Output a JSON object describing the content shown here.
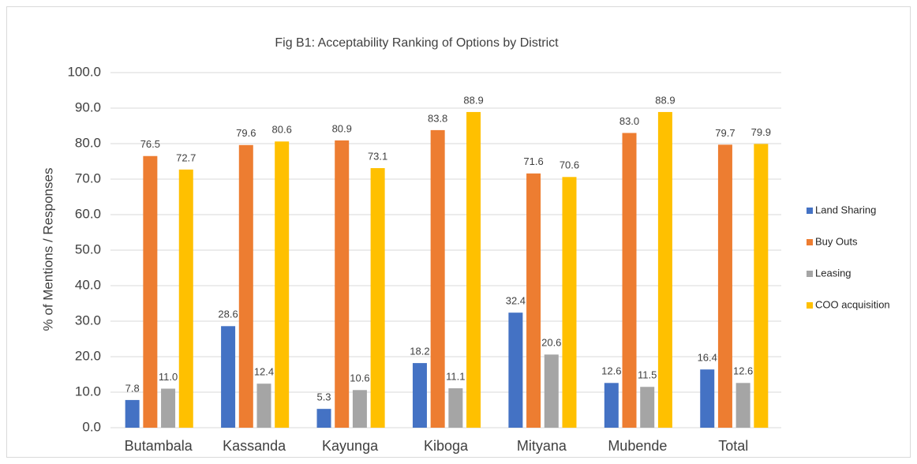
{
  "chart_data": {
    "type": "bar",
    "title": "Fig B1: Acceptability  Ranking of Options by District",
    "y_label": "% of Mentions / Responses",
    "categories": [
      "Butambala",
      "Kassanda",
      "Kayunga",
      "Kiboga",
      "Mityana",
      "Mubende",
      "Total"
    ],
    "series": [
      {
        "name": "Land Sharing",
        "color": "#4472c4",
        "values": [
          7.8,
          28.6,
          5.3,
          18.2,
          32.4,
          12.6,
          16.4
        ],
        "value_labels": [
          "7.8",
          "28.6",
          "5.3",
          "18.2",
          "32.4",
          "12.6",
          "16.4"
        ]
      },
      {
        "name": "Buy Outs",
        "color": "#ed7d31",
        "values": [
          76.5,
          79.6,
          80.9,
          83.8,
          71.6,
          83.0,
          79.7
        ],
        "value_labels": [
          "76.5",
          "79.6",
          "80.9",
          "83.8",
          "71.6",
          "83.0",
          "79.7"
        ]
      },
      {
        "name": "Leasing",
        "color": "#a5a5a5",
        "values": [
          11.0,
          12.4,
          10.6,
          11.1,
          20.6,
          11.5,
          12.6
        ],
        "value_labels": [
          "11.0",
          "12.4",
          "10.6",
          "11.1",
          "20.6",
          "11.5",
          "12.6"
        ]
      },
      {
        "name": "COO acquisition",
        "color": "#ffc000",
        "values": [
          72.7,
          80.6,
          73.1,
          88.9,
          70.6,
          88.9,
          79.9
        ],
        "value_labels": [
          "72.7",
          "80.6",
          "73.1",
          "88.9",
          "70.6",
          "88.9",
          "79.9"
        ]
      }
    ],
    "ylim": [
      0,
      100
    ],
    "yticks": [
      {
        "value": 0,
        "label": "0.0"
      },
      {
        "value": 10,
        "label": "10.0"
      },
      {
        "value": 20,
        "label": "20.0"
      },
      {
        "value": 30,
        "label": "30.0"
      },
      {
        "value": 40,
        "label": "40.0"
      },
      {
        "value": 50,
        "label": "50.0"
      },
      {
        "value": 60,
        "label": "60.0"
      },
      {
        "value": 70,
        "label": "70.0"
      },
      {
        "value": 80,
        "label": "80.0"
      },
      {
        "value": 90,
        "label": "90.0"
      },
      {
        "value": 100,
        "label": "100.0"
      }
    ],
    "grid": true,
    "legend": "right"
  }
}
